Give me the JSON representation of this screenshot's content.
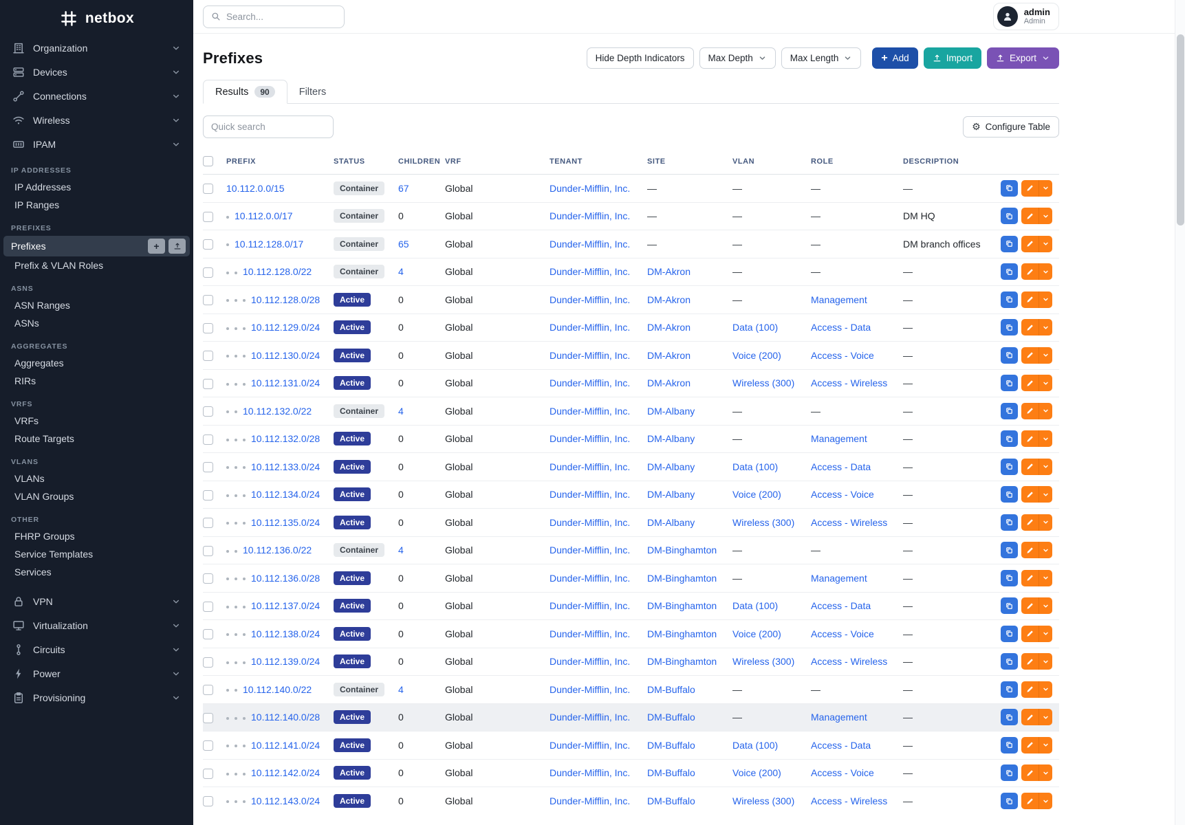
{
  "brand": {
    "name": "netbox"
  },
  "colors": {
    "sidebar_bg": "#161d2a",
    "link": "#2563eb",
    "active_badge": "#2e3d99",
    "container_badge": "#e7eaed",
    "add_button": "#1d4fa8",
    "import_button": "#19a5a0",
    "export_button": "#7a52b5",
    "action_copy": "#3374dd",
    "action_edit": "#fd7e14"
  },
  "sidebar": {
    "top_menus": [
      {
        "label": "Organization",
        "icon": "organization-icon"
      },
      {
        "label": "Devices",
        "icon": "devices-icon"
      },
      {
        "label": "Connections",
        "icon": "connections-icon"
      },
      {
        "label": "Wireless",
        "icon": "wireless-icon"
      },
      {
        "label": "IPAM",
        "icon": "ipam-icon"
      }
    ],
    "sections": [
      {
        "title": "IP ADDRESSES",
        "items": [
          {
            "label": "IP Addresses"
          },
          {
            "label": "IP Ranges"
          }
        ]
      },
      {
        "title": "PREFIXES",
        "items": [
          {
            "label": "Prefixes",
            "active": true
          },
          {
            "label": "Prefix & VLAN Roles"
          }
        ]
      },
      {
        "title": "ASNS",
        "items": [
          {
            "label": "ASN Ranges"
          },
          {
            "label": "ASNs"
          }
        ]
      },
      {
        "title": "AGGREGATES",
        "items": [
          {
            "label": "Aggregates"
          },
          {
            "label": "RIRs"
          }
        ]
      },
      {
        "title": "VRFS",
        "items": [
          {
            "label": "VRFs"
          },
          {
            "label": "Route Targets"
          }
        ]
      },
      {
        "title": "VLANS",
        "items": [
          {
            "label": "VLANs"
          },
          {
            "label": "VLAN Groups"
          }
        ]
      },
      {
        "title": "OTHER",
        "items": [
          {
            "label": "FHRP Groups"
          },
          {
            "label": "Service Templates"
          },
          {
            "label": "Services"
          }
        ]
      }
    ],
    "bottom_menus": [
      {
        "label": "VPN",
        "icon": "vpn-icon"
      },
      {
        "label": "Virtualization",
        "icon": "virtualization-icon"
      },
      {
        "label": "Circuits",
        "icon": "circuits-icon"
      },
      {
        "label": "Power",
        "icon": "power-icon"
      },
      {
        "label": "Provisioning",
        "icon": "provisioning-icon"
      }
    ]
  },
  "topbar": {
    "search_placeholder": "Search...",
    "user": {
      "name": "admin",
      "role": "Admin"
    }
  },
  "page": {
    "title": "Prefixes"
  },
  "controls": {
    "hide_depth_label": "Hide Depth Indicators",
    "max_depth_label": "Max Depth",
    "max_length_label": "Max Length",
    "add_label": "Add",
    "import_label": "Import",
    "export_label": "Export"
  },
  "tabs": {
    "results_label": "Results",
    "results_count": "90",
    "filters_label": "Filters"
  },
  "table_controls": {
    "quick_search_placeholder": "Quick search",
    "configure_label": "Configure Table"
  },
  "table": {
    "empty_placeholder": "—",
    "columns": [
      {
        "key": "prefix",
        "label": "PREFIX"
      },
      {
        "key": "status",
        "label": "STATUS"
      },
      {
        "key": "children",
        "label": "CHILDREN"
      },
      {
        "key": "vrf",
        "label": "VRF"
      },
      {
        "key": "tenant",
        "label": "TENANT"
      },
      {
        "key": "site",
        "label": "SITE"
      },
      {
        "key": "vlan",
        "label": "VLAN"
      },
      {
        "key": "role",
        "label": "ROLE"
      },
      {
        "key": "description",
        "label": "DESCRIPTION"
      }
    ],
    "rows": [
      {
        "depth": 0,
        "prefix": "10.112.0.0/15",
        "status": "Container",
        "children": "67",
        "children_is_link": true,
        "vrf": "Global",
        "tenant": "Dunder-Mifflin, Inc."
      },
      {
        "depth": 1,
        "prefix": "10.112.0.0/17",
        "status": "Container",
        "children": "0",
        "vrf": "Global",
        "tenant": "Dunder-Mifflin, Inc.",
        "description": "DM HQ"
      },
      {
        "depth": 1,
        "prefix": "10.112.128.0/17",
        "status": "Container",
        "children": "65",
        "children_is_link": true,
        "vrf": "Global",
        "tenant": "Dunder-Mifflin, Inc.",
        "description": "DM branch offices"
      },
      {
        "depth": 2,
        "prefix": "10.112.128.0/22",
        "status": "Container",
        "children": "4",
        "children_is_link": true,
        "vrf": "Global",
        "tenant": "Dunder-Mifflin, Inc.",
        "site": "DM-Akron"
      },
      {
        "depth": 3,
        "prefix": "10.112.128.0/28",
        "status": "Active",
        "children": "0",
        "vrf": "Global",
        "tenant": "Dunder-Mifflin, Inc.",
        "site": "DM-Akron",
        "role": "Management"
      },
      {
        "depth": 3,
        "prefix": "10.112.129.0/24",
        "status": "Active",
        "children": "0",
        "vrf": "Global",
        "tenant": "Dunder-Mifflin, Inc.",
        "site": "DM-Akron",
        "vlan": "Data (100)",
        "role": "Access - Data"
      },
      {
        "depth": 3,
        "prefix": "10.112.130.0/24",
        "status": "Active",
        "children": "0",
        "vrf": "Global",
        "tenant": "Dunder-Mifflin, Inc.",
        "site": "DM-Akron",
        "vlan": "Voice (200)",
        "role": "Access - Voice"
      },
      {
        "depth": 3,
        "prefix": "10.112.131.0/24",
        "status": "Active",
        "children": "0",
        "vrf": "Global",
        "tenant": "Dunder-Mifflin, Inc.",
        "site": "DM-Akron",
        "vlan": "Wireless (300)",
        "role": "Access - Wireless"
      },
      {
        "depth": 2,
        "prefix": "10.112.132.0/22",
        "status": "Container",
        "children": "4",
        "children_is_link": true,
        "vrf": "Global",
        "tenant": "Dunder-Mifflin, Inc.",
        "site": "DM-Albany"
      },
      {
        "depth": 3,
        "prefix": "10.112.132.0/28",
        "status": "Active",
        "children": "0",
        "vrf": "Global",
        "tenant": "Dunder-Mifflin, Inc.",
        "site": "DM-Albany",
        "role": "Management"
      },
      {
        "depth": 3,
        "prefix": "10.112.133.0/24",
        "status": "Active",
        "children": "0",
        "vrf": "Global",
        "tenant": "Dunder-Mifflin, Inc.",
        "site": "DM-Albany",
        "vlan": "Data (100)",
        "role": "Access - Data"
      },
      {
        "depth": 3,
        "prefix": "10.112.134.0/24",
        "status": "Active",
        "children": "0",
        "vrf": "Global",
        "tenant": "Dunder-Mifflin, Inc.",
        "site": "DM-Albany",
        "vlan": "Voice (200)",
        "role": "Access - Voice"
      },
      {
        "depth": 3,
        "prefix": "10.112.135.0/24",
        "status": "Active",
        "children": "0",
        "vrf": "Global",
        "tenant": "Dunder-Mifflin, Inc.",
        "site": "DM-Albany",
        "vlan": "Wireless (300)",
        "role": "Access - Wireless"
      },
      {
        "depth": 2,
        "prefix": "10.112.136.0/22",
        "status": "Container",
        "children": "4",
        "children_is_link": true,
        "vrf": "Global",
        "tenant": "Dunder-Mifflin, Inc.",
        "site": "DM-Binghamton"
      },
      {
        "depth": 3,
        "prefix": "10.112.136.0/28",
        "status": "Active",
        "children": "0",
        "vrf": "Global",
        "tenant": "Dunder-Mifflin, Inc.",
        "site": "DM-Binghamton",
        "role": "Management"
      },
      {
        "depth": 3,
        "prefix": "10.112.137.0/24",
        "status": "Active",
        "children": "0",
        "vrf": "Global",
        "tenant": "Dunder-Mifflin, Inc.",
        "site": "DM-Binghamton",
        "vlan": "Data (100)",
        "role": "Access - Data"
      },
      {
        "depth": 3,
        "prefix": "10.112.138.0/24",
        "status": "Active",
        "children": "0",
        "vrf": "Global",
        "tenant": "Dunder-Mifflin, Inc.",
        "site": "DM-Binghamton",
        "vlan": "Voice (200)",
        "role": "Access - Voice"
      },
      {
        "depth": 3,
        "prefix": "10.112.139.0/24",
        "status": "Active",
        "children": "0",
        "vrf": "Global",
        "tenant": "Dunder-Mifflin, Inc.",
        "site": "DM-Binghamton",
        "vlan": "Wireless (300)",
        "role": "Access - Wireless"
      },
      {
        "depth": 2,
        "prefix": "10.112.140.0/22",
        "status": "Container",
        "children": "4",
        "children_is_link": true,
        "vrf": "Global",
        "tenant": "Dunder-Mifflin, Inc.",
        "site": "DM-Buffalo"
      },
      {
        "depth": 3,
        "prefix": "10.112.140.0/28",
        "status": "Active",
        "children": "0",
        "vrf": "Global",
        "tenant": "Dunder-Mifflin, Inc.",
        "site": "DM-Buffalo",
        "role": "Management",
        "highlighted": true
      },
      {
        "depth": 3,
        "prefix": "10.112.141.0/24",
        "status": "Active",
        "children": "0",
        "vrf": "Global",
        "tenant": "Dunder-Mifflin, Inc.",
        "site": "DM-Buffalo",
        "vlan": "Data (100)",
        "role": "Access - Data"
      },
      {
        "depth": 3,
        "prefix": "10.112.142.0/24",
        "status": "Active",
        "children": "0",
        "vrf": "Global",
        "tenant": "Dunder-Mifflin, Inc.",
        "site": "DM-Buffalo",
        "vlan": "Voice (200)",
        "role": "Access - Voice"
      },
      {
        "depth": 3,
        "prefix": "10.112.143.0/24",
        "status": "Active",
        "children": "0",
        "vrf": "Global",
        "tenant": "Dunder-Mifflin, Inc.",
        "site": "DM-Buffalo",
        "vlan": "Wireless (300)",
        "role": "Access - Wireless"
      }
    ]
  }
}
